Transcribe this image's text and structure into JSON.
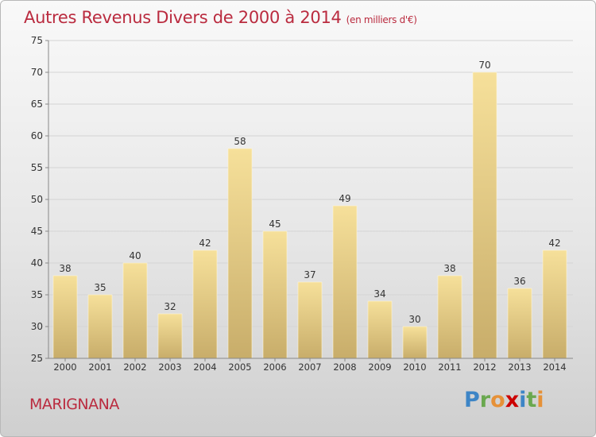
{
  "header": {
    "title": "Autres Revenus Divers de 2000 à 2014",
    "unit": "(en milliers d'€)"
  },
  "footer": {
    "commune": "MARIGNANA",
    "brand": "Proxiti"
  },
  "colors": {
    "title": "#ba2b3f",
    "bar_top": "#f6e09a",
    "bar_bottom": "#c8ad6a",
    "brand_letters": [
      "#3d85c6",
      "#6aa84f",
      "#e69138",
      "#cc0000",
      "#3d85c6",
      "#6aa84f",
      "#e69138"
    ]
  },
  "chart_data": {
    "type": "bar",
    "categories": [
      "2000",
      "2001",
      "2002",
      "2003",
      "2004",
      "2005",
      "2006",
      "2007",
      "2008",
      "2009",
      "2010",
      "2011",
      "2012",
      "2013",
      "2014"
    ],
    "values": [
      38,
      35,
      40,
      32,
      42,
      58,
      45,
      37,
      49,
      34,
      30,
      38,
      70,
      36,
      42
    ],
    "ylim": [
      25,
      75
    ],
    "yticks": [
      25,
      30,
      35,
      40,
      45,
      50,
      55,
      60,
      65,
      70,
      75
    ],
    "grid": true,
    "data_labels": true
  }
}
